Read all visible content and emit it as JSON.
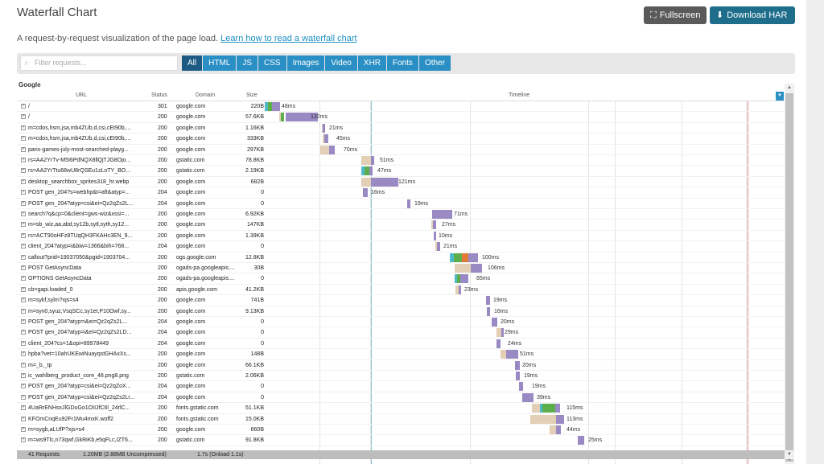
{
  "title": "Waterfall Chart",
  "buttons": {
    "fullscreen": "Fullscreen",
    "download": "Download HAR"
  },
  "description": {
    "text": "A request-by-request visualization of the page load.",
    "link": "Learn how to read a waterfall chart"
  },
  "search": {
    "placeholder": "Filter requests..."
  },
  "filters": [
    "All",
    "HTML",
    "JS",
    "CSS",
    "Images",
    "Video",
    "XHR",
    "Fonts",
    "Other"
  ],
  "active_filter": "All",
  "table": {
    "group": "Google",
    "columns": {
      "url": "URL",
      "status": "Status",
      "domain": "Domain",
      "size": "Size",
      "timeline": "Timeline"
    },
    "rows": [
      {
        "url": "/",
        "status": "301",
        "domain": "google.com",
        "size": "220B",
        "time": "48ms"
      },
      {
        "url": "/",
        "status": "200",
        "domain": "google.com",
        "size": "57.6KB",
        "time": "132ms"
      },
      {
        "url": "m=cdos,hsm,jsa,mb4ZUb,d,csi,cEt90b,...",
        "status": "200",
        "domain": "google.com",
        "size": "1.16KB",
        "time": "21ms"
      },
      {
        "url": "m=cdos,hsm,jsa,mb4ZUb,d,csi,cEt90b,...",
        "status": "200",
        "domain": "google.com",
        "size": "333KB",
        "time": "45ms"
      },
      {
        "url": "paris-games-july-most-searched-playg...",
        "status": "200",
        "domain": "google.com",
        "size": "297KB",
        "time": "70ms"
      },
      {
        "url": "rs=AA2YrTv-M5I6PdNQX8llQjTJG8Ojo...",
        "status": "200",
        "domain": "gstatic.com",
        "size": "78.8KB",
        "time": "51ms"
      },
      {
        "url": "rs=AA2YrTtu68wU8rQSEu1zLoTY_BO...",
        "status": "200",
        "domain": "gstatic.com",
        "size": "2.19KB",
        "time": "47ms"
      },
      {
        "url": "desktop_searchbox_sprites318_hr.webp",
        "status": "200",
        "domain": "google.com",
        "size": "682B",
        "time": "121ms"
      },
      {
        "url": "POST gen_204?s=webhp&t=aft&atyp=...",
        "status": "204",
        "domain": "google.com",
        "size": "0",
        "time": "16ms"
      },
      {
        "url": "POST gen_204?atyp=csi&ei=Qz2qZs2L...",
        "status": "204",
        "domain": "google.com",
        "size": "0",
        "time": "19ms"
      },
      {
        "url": "search?q&cp=0&client=gws-wiz&xssi=...",
        "status": "200",
        "domain": "google.com",
        "size": "6.92KB",
        "time": "71ms"
      },
      {
        "url": "m=sb_wiz,aa,abd,sy12b,sytl,syth,sy12...",
        "status": "200",
        "domain": "google.com",
        "size": "147KB",
        "time": "27ms"
      },
      {
        "url": "rs=ACT90oHFz8TUqQH3FKAHc3EN_9...",
        "status": "200",
        "domain": "google.com",
        "size": "1.39KB",
        "time": "10ms"
      },
      {
        "url": "client_204?atyp=i&biw=1366&bih=768...",
        "status": "204",
        "domain": "google.com",
        "size": "0",
        "time": "21ms"
      },
      {
        "url": "callout?prid=19037050&pgid=1903704...",
        "status": "200",
        "domain": "ogs.google.com",
        "size": "12.8KB",
        "time": "100ms"
      },
      {
        "url": "POST GetAsyncData",
        "status": "200",
        "domain": "ogads-pa.googleapis....",
        "size": "30B",
        "time": "106ms"
      },
      {
        "url": "OPTIONS GetAsyncData",
        "status": "200",
        "domain": "ogads-pa.googleapis....",
        "size": "0",
        "time": "65ms"
      },
      {
        "url": "cb=gapi.loaded_0",
        "status": "200",
        "domain": "apis.google.com",
        "size": "41.2KB",
        "time": "23ms"
      },
      {
        "url": "m=sykf,sylm?xjs=s4",
        "status": "200",
        "domain": "google.com",
        "size": "741B",
        "time": "19ms"
      },
      {
        "url": "m=syv0,syuz,VsqSCc,sy1et,P10Owf,sy...",
        "status": "200",
        "domain": "google.com",
        "size": "9.13KB",
        "time": "16ms"
      },
      {
        "url": "POST gen_204?atyp=i&ei=Qz2qZs2L...",
        "status": "204",
        "domain": "google.com",
        "size": "0",
        "time": "20ms"
      },
      {
        "url": "POST gen_204?atyp=i&ei=Qz2qZs2LD...",
        "status": "204",
        "domain": "google.com",
        "size": "0",
        "time": "29ms"
      },
      {
        "url": "client_204?cs=1&opi=89978449",
        "status": "204",
        "domain": "google.com",
        "size": "0",
        "time": "24ms"
      },
      {
        "url": "hpba?vet=10ahUKEwiNuayqstGHAxXs...",
        "status": "200",
        "domain": "google.com",
        "size": "148B",
        "time": "51ms"
      },
      {
        "url": "m=_b,_tp",
        "status": "200",
        "domain": "google.com",
        "size": "66.1KB",
        "time": "20ms"
      },
      {
        "url": "ic_wahlberg_product_core_48.png8.png",
        "status": "200",
        "domain": "gstatic.com",
        "size": "2.06KB",
        "time": "19ms"
      },
      {
        "url": "POST gen_204?atyp=csi&ei=Qz2qZoX...",
        "status": "204",
        "domain": "google.com",
        "size": "0",
        "time": "19ms"
      },
      {
        "url": "POST gen_204?atyp=csi&ei=Qz2qZs2Lr...",
        "status": "204",
        "domain": "google.com",
        "size": "0",
        "time": "39ms"
      },
      {
        "url": "4UaRrENHsxJlGDuGo1OIIJfC6l_24rlC...",
        "status": "200",
        "domain": "fonts.gstatic.com",
        "size": "51.1KB",
        "time": "115ms"
      },
      {
        "url": "KFOmCnqEu92Fr1Mu4mxK.woff2",
        "status": "200",
        "domain": "fonts.gstatic.com",
        "size": "15.0KB",
        "time": "113ms"
      },
      {
        "url": "m=sygb,aLUfP?xjs=s4",
        "status": "200",
        "domain": "google.com",
        "size": "660B",
        "time": "44ms"
      },
      {
        "url": "m=ws9Tlc,n73qwf,GkRiKb,e5qFLc,IZT6...",
        "status": "200",
        "domain": "gstatic.com",
        "size": "91.8KB",
        "time": "25ms"
      }
    ]
  },
  "footer": {
    "requests": "41 Requests",
    "size": "1.20MB (2.88MB Uncompressed)",
    "load": "1.7s (Onload 1.1s)"
  },
  "colors": {
    "accent": "#2a8fc4",
    "active": "#1e5b84",
    "download": "#1d6d8b",
    "receive": "#9a8ac4",
    "wait": "#e2cfb5",
    "connect": "#5cae4a",
    "ssl": "#e07a34",
    "dns": "#4fb9c8"
  }
}
